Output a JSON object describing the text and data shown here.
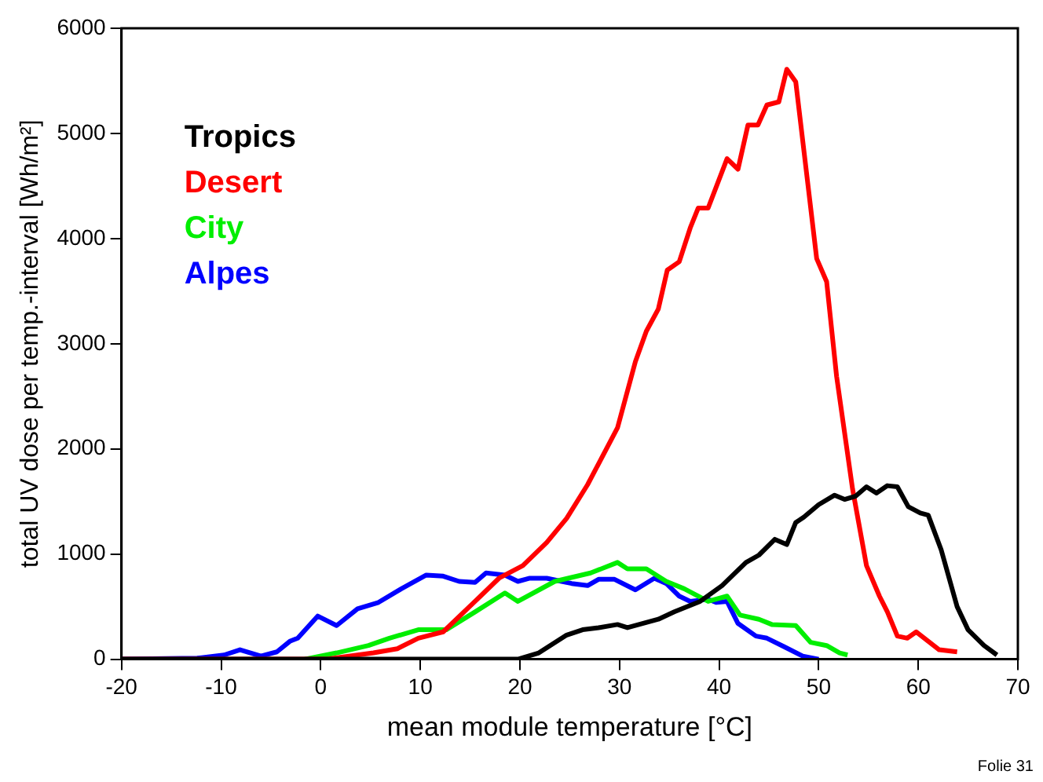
{
  "chart_data": {
    "type": "line",
    "xlabel": "mean module temperature [°C]",
    "ylabel": "total UV dose per temp.-interval [Wh/m²]",
    "xlim": [
      -20,
      70
    ],
    "xticks": [
      -20,
      -10,
      0,
      10,
      20,
      30,
      40,
      50,
      60,
      70
    ],
    "ylim": [
      0,
      6000
    ],
    "yticks": [
      0,
      1000,
      2000,
      3000,
      4000,
      5000,
      6000
    ],
    "grid": false,
    "legend": "top left",
    "marker": "none",
    "line_style": "solid",
    "annotations": [
      "Folie 31"
    ],
    "series": [
      {
        "name": "Tropics",
        "color": "#000000",
        "x": [
          -20,
          19.8,
          21.9,
          24.7,
          26.3,
          27.9,
          29.8,
          30.8,
          33.9,
          35.5,
          38.1,
          40.3,
          42.7,
          44,
          45.6,
          46.8,
          47.7,
          48.5,
          50,
          51.6,
          52.6,
          53.7,
          54.8,
          55.8,
          56.9,
          57.9,
          59,
          60.2,
          61,
          62.3,
          63.9,
          65,
          66.6,
          67.9
        ],
        "values": [
          0,
          0,
          60,
          230,
          280,
          300,
          330,
          300,
          380,
          450,
          550,
          700,
          920,
          990,
          1140,
          1090,
          1300,
          1350,
          1470,
          1560,
          1520,
          1550,
          1640,
          1580,
          1650,
          1640,
          1450,
          1390,
          1370,
          1040,
          500,
          280,
          130,
          40
        ]
      },
      {
        "name": "Desert",
        "color": "#ff0000",
        "x": [
          -20,
          0.5,
          5.3,
          7.7,
          9.8,
          12.3,
          15.5,
          17.9,
          20.3,
          22.7,
          24.7,
          26.8,
          29.8,
          31.6,
          32.7,
          33.9,
          34.8,
          36,
          37.1,
          37.9,
          38.9,
          40.8,
          41.9,
          42.9,
          43.9,
          44.8,
          46,
          46.8,
          47.7,
          49.8,
          50.8,
          51.8,
          53.4,
          54.8,
          56.1,
          56.9,
          57.9,
          58.9,
          59.8,
          62.1,
          63.9
        ],
        "values": [
          0,
          0,
          60,
          100,
          200,
          260,
          550,
          770,
          890,
          1110,
          1340,
          1660,
          2200,
          2830,
          3120,
          3330,
          3700,
          3780,
          4100,
          4290,
          4290,
          4760,
          4660,
          5080,
          5080,
          5270,
          5300,
          5610,
          5490,
          3810,
          3590,
          2690,
          1620,
          890,
          600,
          450,
          220,
          200,
          260,
          90,
          70
        ]
      },
      {
        "name": "City",
        "color": "#00ee00",
        "x": [
          -1.6,
          1.6,
          4.8,
          6.9,
          9.8,
          12.6,
          15.5,
          18.5,
          19.8,
          23.5,
          27.1,
          29.8,
          30.8,
          32.7,
          34.7,
          36.5,
          38.9,
          40.8,
          42.1,
          44,
          45.3,
          47.7,
          49.2,
          50.8,
          52.1,
          52.9
        ],
        "values": [
          0,
          60,
          130,
          200,
          280,
          280,
          450,
          630,
          550,
          740,
          820,
          920,
          860,
          860,
          740,
          670,
          550,
          600,
          420,
          380,
          330,
          320,
          160,
          130,
          60,
          40
        ]
      },
      {
        "name": "Alpes",
        "color": "#0000ff",
        "x": [
          -20,
          -12.4,
          -9.7,
          -8.1,
          -6,
          -4.4,
          -3.1,
          -2.3,
          -0.3,
          1.6,
          3.7,
          5.8,
          8.1,
          10.6,
          12.3,
          13.9,
          15.5,
          16.6,
          18.5,
          19.8,
          21,
          22.7,
          24.2,
          25.2,
          26.8,
          27.9,
          29.5,
          31.6,
          33.5,
          34.7,
          36,
          37.1,
          38.9,
          39.7,
          40.8,
          41.9,
          43.7,
          44.8,
          46.5,
          48.4,
          50
        ],
        "values": [
          0,
          10,
          40,
          90,
          30,
          70,
          170,
          200,
          410,
          320,
          480,
          540,
          670,
          800,
          790,
          740,
          730,
          820,
          800,
          740,
          770,
          770,
          740,
          720,
          700,
          760,
          760,
          660,
          770,
          720,
          600,
          550,
          570,
          540,
          550,
          340,
          220,
          200,
          120,
          30,
          0
        ]
      }
    ]
  }
}
